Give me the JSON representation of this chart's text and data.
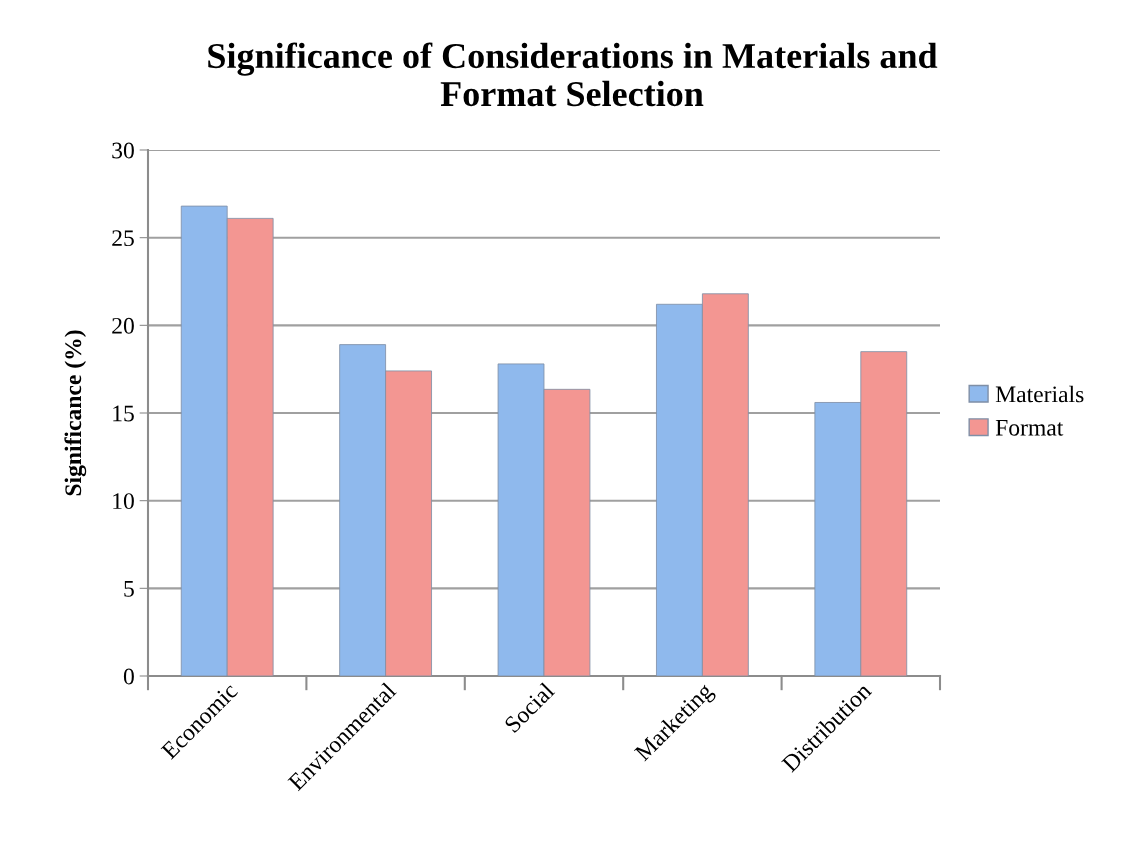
{
  "chart_data": {
    "type": "bar",
    "title": "Significance of Considerations in Materials and\nFormat Selection",
    "ylabel": "Significance (%)",
    "categories": [
      "Economic",
      "Environmental",
      "Social",
      "Marketing",
      "Distribution"
    ],
    "series": [
      {
        "name": "Materials",
        "color": "#8fb9ed",
        "values": [
          26.8,
          18.9,
          17.8,
          21.2,
          15.6
        ]
      },
      {
        "name": "Format",
        "color": "#f39692",
        "values": [
          26.1,
          17.4,
          16.35,
          21.8,
          18.5
        ]
      }
    ],
    "ylim": [
      0,
      30
    ],
    "yticks": [
      0,
      5,
      10,
      15,
      20,
      25,
      30
    ],
    "grid": "y",
    "legend": "right"
  }
}
